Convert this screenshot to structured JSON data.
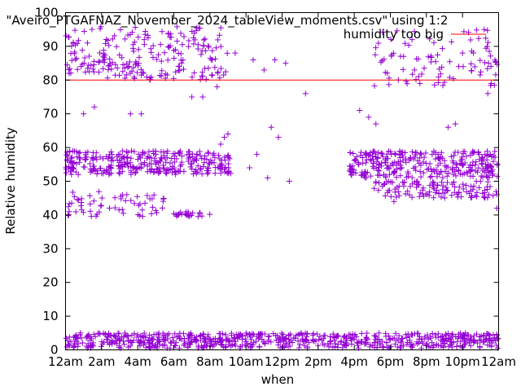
{
  "chart_data": {
    "type": "scatter",
    "title": "\"Aveiro_PTGAFNAZ_November_2024_tableView_moments.csv\" using 1:2",
    "xlabel": "when",
    "ylabel": "Relative humidity",
    "xlim": [
      0,
      24
    ],
    "ylim": [
      0,
      100
    ],
    "x_unit": "hours",
    "x_ticks": [
      {
        "v": 0,
        "label": "12am"
      },
      {
        "v": 2,
        "label": "2am"
      },
      {
        "v": 4,
        "label": "4am"
      },
      {
        "v": 6,
        "label": "6am"
      },
      {
        "v": 8,
        "label": "8am"
      },
      {
        "v": 10,
        "label": "10am"
      },
      {
        "v": 12,
        "label": "12pm"
      },
      {
        "v": 14,
        "label": "2pm"
      },
      {
        "v": 16,
        "label": "4pm"
      },
      {
        "v": 18,
        "label": "6pm"
      },
      {
        "v": 20,
        "label": "8pm"
      },
      {
        "v": 22,
        "label": "10pm"
      },
      {
        "v": 24,
        "label": "12am"
      }
    ],
    "y_ticks": [
      0,
      10,
      20,
      30,
      40,
      50,
      60,
      70,
      80,
      90,
      100
    ],
    "legend_placement": "top-right",
    "grid": false,
    "series": [
      {
        "name": "",
        "marker": "+",
        "color": "#9400d3",
        "clusters": [
          {
            "x": [
              0,
              24
            ],
            "y": [
              0.5,
              5
            ],
            "n": 700
          },
          {
            "x": [
              0,
              9.2
            ],
            "y": [
              52,
              59
            ],
            "n": 320
          },
          {
            "x": [
              15.7,
              24
            ],
            "y": [
              51,
              59
            ],
            "n": 300
          },
          {
            "x": [
              17,
              24
            ],
            "y": [
              45,
              50
            ],
            "n": 120
          },
          {
            "x": [
              0,
              5.5
            ],
            "y": [
              39,
              47
            ],
            "n": 60
          },
          {
            "x": [
              6,
              8.2
            ],
            "y": [
              39.5,
              41
            ],
            "n": 25
          },
          {
            "x": [
              0,
              9
            ],
            "y": [
              80,
              96
            ],
            "n": 220
          },
          {
            "x": [
              17,
              24
            ],
            "y": [
              78,
              95
            ],
            "n": 90
          }
        ],
        "points": [
          [
            8.6,
            61
          ],
          [
            8.8,
            63
          ],
          [
            9.0,
            64
          ],
          [
            10.2,
            54
          ],
          [
            10.6,
            58
          ],
          [
            11.2,
            51
          ],
          [
            10.4,
            86
          ],
          [
            11.0,
            83
          ],
          [
            11.6,
            86
          ],
          [
            12.2,
            85
          ],
          [
            11.4,
            66
          ],
          [
            11.8,
            63
          ],
          [
            13.3,
            76
          ],
          [
            12.4,
            50
          ],
          [
            16.3,
            71
          ],
          [
            16.8,
            69
          ],
          [
            17.2,
            67
          ],
          [
            18.2,
            44
          ],
          [
            21.2,
            66
          ],
          [
            21.6,
            67
          ],
          [
            23.6,
            79
          ],
          [
            23.4,
            76
          ],
          [
            1.6,
            72
          ],
          [
            1.0,
            70
          ],
          [
            3.6,
            70
          ],
          [
            4.2,
            70
          ],
          [
            7.0,
            75
          ],
          [
            7.6,
            75
          ],
          [
            8.4,
            78
          ],
          [
            9.4,
            88
          ],
          [
            19.2,
            92
          ],
          [
            23.2,
            95
          ],
          [
            22.0,
            88
          ],
          [
            0.2,
            41
          ],
          [
            23.9,
            42
          ]
        ]
      },
      {
        "name": "humidity too big",
        "type": "line",
        "color": "#ff0000",
        "x": [
          0,
          24
        ],
        "y": [
          80,
          80
        ]
      }
    ]
  }
}
